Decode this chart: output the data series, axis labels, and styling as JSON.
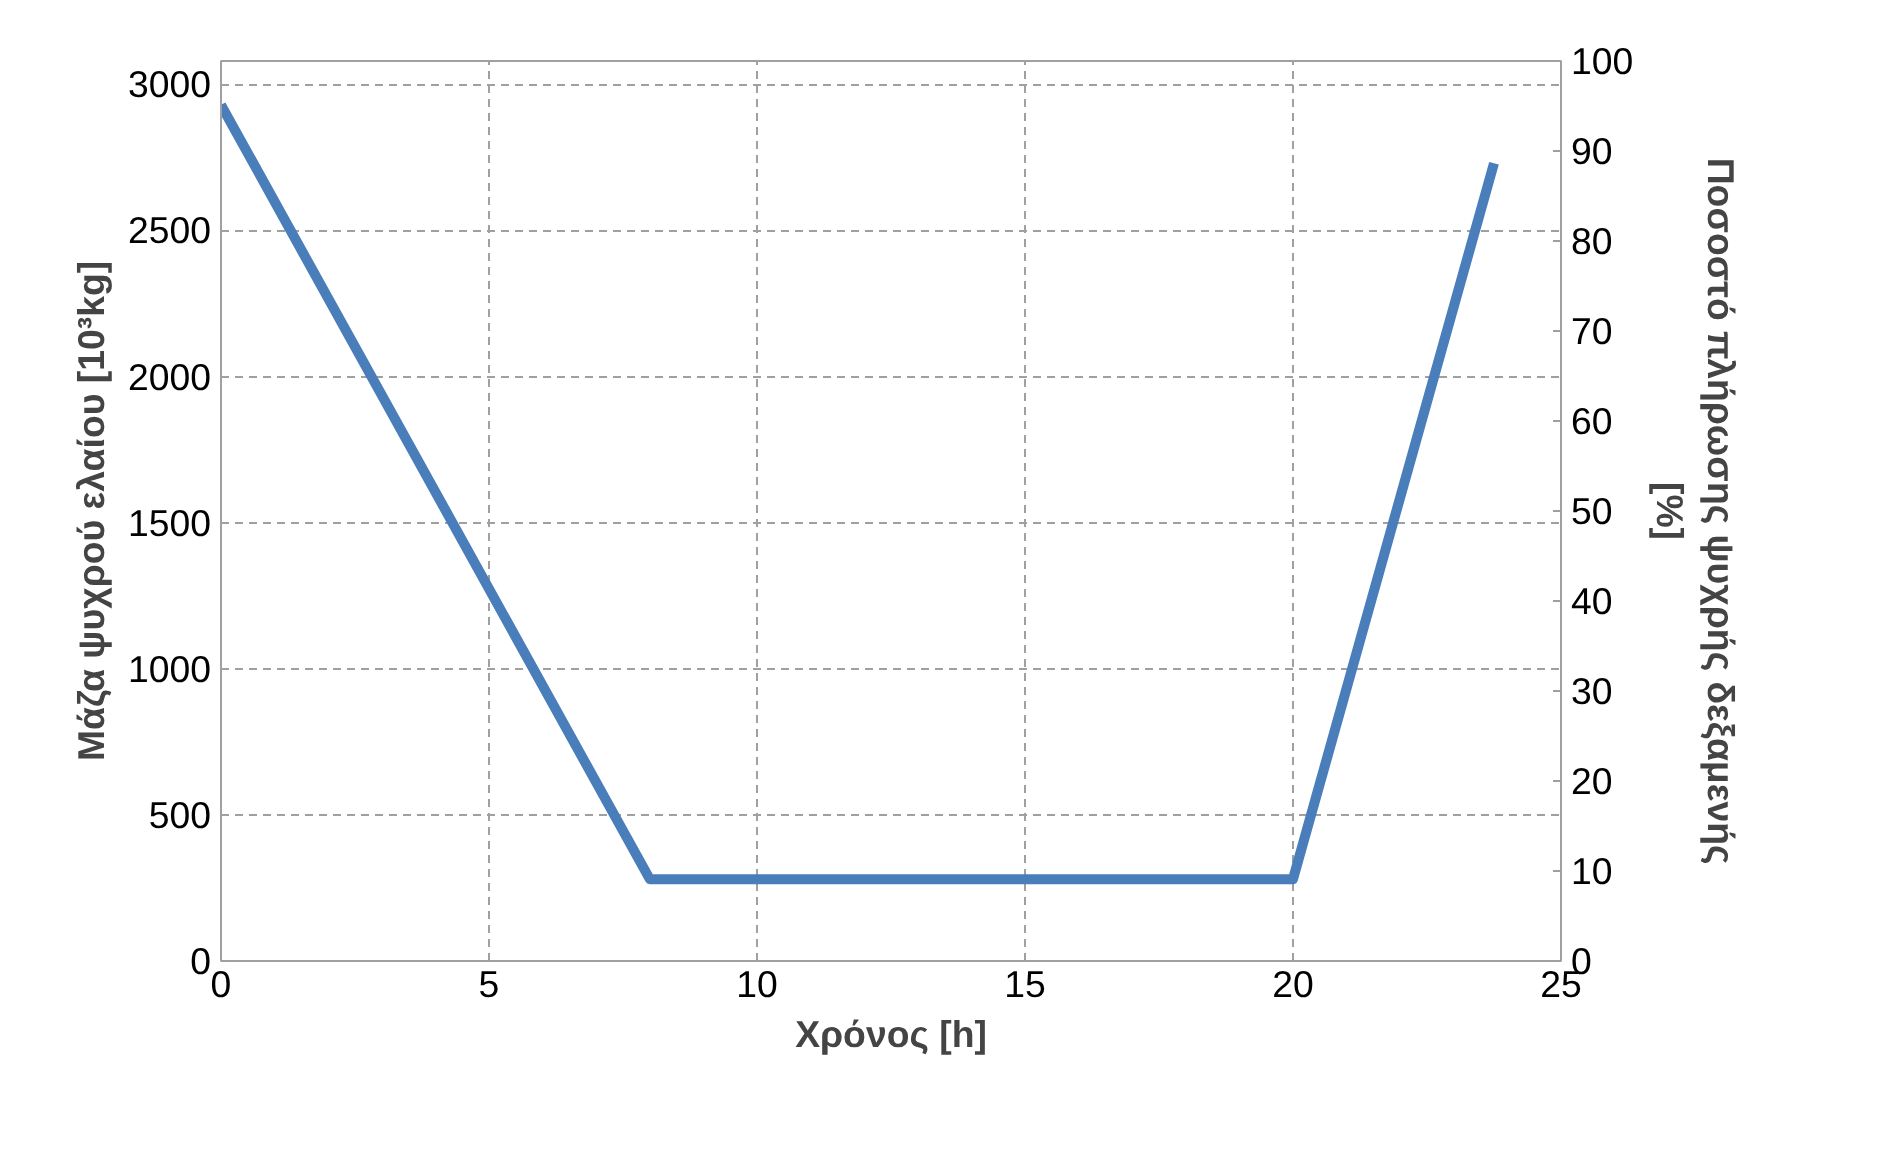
{
  "chart_data": {
    "type": "line",
    "xlabel": "Χρόνος [h]",
    "ylabel": "Μάζα ψυχρού ελαίου [10³kg]",
    "y2label": "Ποσοστό πλήρωσης ψυχρής δεξαμενής [%]",
    "series": [
      {
        "color": "#4a7ebb",
        "x": [
          0,
          8,
          20,
          23.75
        ],
        "values": [
          2930,
          280,
          280,
          2730
        ]
      }
    ],
    "xlim": [
      0,
      25
    ],
    "xticks": [
      0,
      5,
      10,
      15,
      20,
      25
    ],
    "ylim": [
      0,
      3080
    ],
    "yticks": [
      0,
      500,
      1000,
      1500,
      2000,
      2500,
      3000
    ],
    "y2lim": [
      0,
      100
    ],
    "y2ticks": [
      0,
      10,
      20,
      30,
      40,
      50,
      60,
      70,
      80,
      90,
      100
    ],
    "grid": true,
    "line_style": "solid",
    "marker": "none"
  }
}
